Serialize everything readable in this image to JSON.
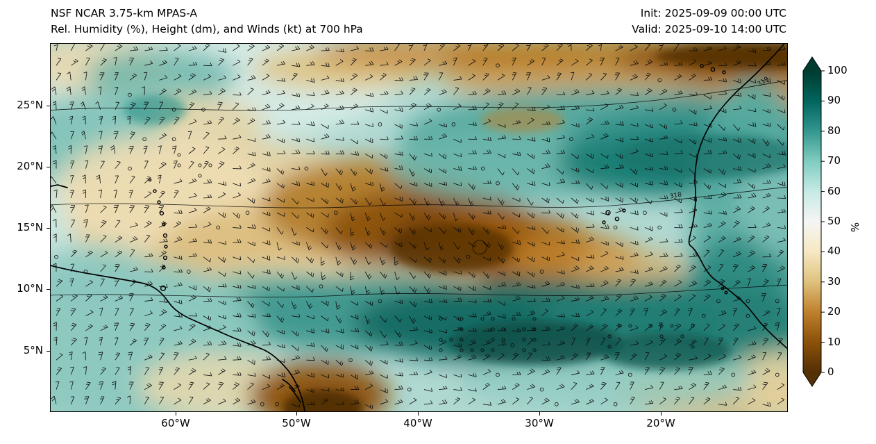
{
  "header": {
    "title_line1": "NSF NCAR 3.75-km MPAS-A",
    "title_line2": "Rel. Humidity (%), Height (dm), and Winds (kt) at 700 hPa",
    "init_label": "Init: 2025-09-09 00:00 UTC",
    "valid_label": "Valid: 2025-09-10 14:00 UTC"
  },
  "axes": {
    "y_ticks": [
      "25°N",
      "20°N",
      "15°N",
      "10°N",
      "5°N"
    ],
    "x_ticks": [
      "60°W",
      "50°W",
      "40°W",
      "30°W",
      "20°W"
    ]
  },
  "colorbar": {
    "label": "%",
    "ticks": [
      "100",
      "90",
      "80",
      "70",
      "60",
      "50",
      "40",
      "30",
      "20",
      "10",
      "0"
    ],
    "stops": [
      {
        "value": 100,
        "color": "#003c30"
      },
      {
        "value": 90,
        "color": "#01665e"
      },
      {
        "value": 80,
        "color": "#35978f"
      },
      {
        "value": 70,
        "color": "#80cdc1"
      },
      {
        "value": 60,
        "color": "#c7eae5"
      },
      {
        "value": 50,
        "color": "#f5f5f5"
      },
      {
        "value": 40,
        "color": "#f6e8c3"
      },
      {
        "value": 30,
        "color": "#dfc27d"
      },
      {
        "value": 20,
        "color": "#bf812d"
      },
      {
        "value": 10,
        "color": "#8c510a"
      },
      {
        "value": 0,
        "color": "#543005"
      }
    ]
  },
  "map": {
    "contour_labels": [
      "319",
      "318"
    ]
  },
  "chart_data": {
    "type": "heatmap",
    "title": "Rel. Humidity (%), Height (dm), and Winds (kt) at 700 hPa",
    "model": "NSF NCAR 3.75-km MPAS-A",
    "init_time": "2025-09-09 00:00 UTC",
    "valid_time": "2025-09-10 14:00 UTC",
    "x_axis": {
      "tick_labels": [
        "60°W",
        "50°W",
        "40°W",
        "30°W",
        "20°W"
      ],
      "approx_range": [
        "70°W",
        "10°W"
      ]
    },
    "y_axis": {
      "tick_labels": [
        "25°N",
        "20°N",
        "15°N",
        "10°N",
        "5°N"
      ],
      "approx_range": [
        "0°N",
        "30°N"
      ]
    },
    "colorbar": {
      "label": "%",
      "ticks": [
        100,
        90,
        80,
        70,
        60,
        50,
        40,
        30,
        20,
        10,
        0
      ],
      "colormap": "BrBG (dark brown = 0% dry, white = 50%, dark teal = 100% moist)",
      "low_color": "#543005",
      "mid_color": "#f5f5f5",
      "high_color": "#003c30"
    },
    "overlays": [
      "wind barbs (kt) on regular grid, calm winds shown as open circles",
      "700 hPa geopotential height contours (dm) with labels 318 and 319",
      "coastlines: South America (Venezuela/Guianas/Brazil), Lesser Antilles arc, Trinidad, West Africa, Cape Verde Islands, Canary Islands"
    ],
    "notable_features": [
      {
        "region": "central Atlantic ~12-18°N, 35-50°W",
        "value": "RH 0-20% (large Saharan dry-air swath, dark brown)"
      },
      {
        "region": "ITCZ band ~5-10°N spanning the basin",
        "value": "RH 80-100% (dark teal)"
      },
      {
        "region": "NE Atlantic band ~17-23°N east of 32°W",
        "value": "RH 70-90%"
      },
      {
        "region": "northern edge ~28-30°N",
        "value": "RH 0-30% dry ribbon"
      },
      {
        "region": "western subtropics ~20-27°N, 55-70°W",
        "value": "RH 30-60% mixed cream/teal"
      },
      {
        "region": "NE Brazil coast ~0-3°N, 45-50°W",
        "value": "RH 0-20% dry pocket"
      },
      {
        "region": "along West African coast",
        "value": "RH 60-90% moist column"
      }
    ]
  }
}
